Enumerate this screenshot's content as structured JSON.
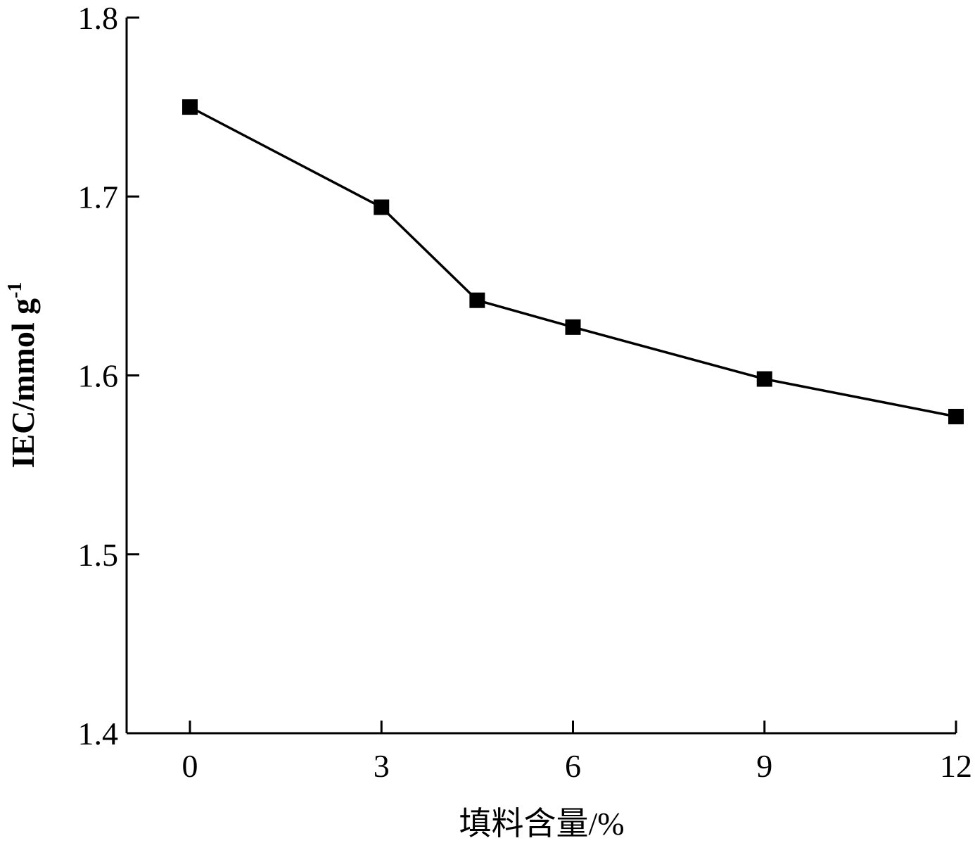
{
  "chart_data": {
    "type": "line",
    "xlabel": "填料含量/%",
    "ylabel": "IEC/mmol g",
    "ylabel_superscript": "-1",
    "xlim": [
      -1,
      12
    ],
    "ylim": [
      1.4,
      1.8
    ],
    "x_ticks": [
      0,
      3,
      6,
      9,
      12
    ],
    "y_ticks": [
      1.4,
      1.5,
      1.6,
      1.7,
      1.8
    ],
    "x_tick_labels": [
      "0",
      "3",
      "6",
      "9",
      "12"
    ],
    "y_tick_labels": [
      "1.4",
      "1.5",
      "1.6",
      "1.7",
      "1.8"
    ],
    "marker": "square",
    "color": "#000000",
    "grid": false,
    "series": [
      {
        "x": [
          0,
          3,
          4.5,
          6,
          9,
          12
        ],
        "y": [
          1.75,
          1.694,
          1.642,
          1.627,
          1.598,
          1.577
        ]
      }
    ]
  }
}
